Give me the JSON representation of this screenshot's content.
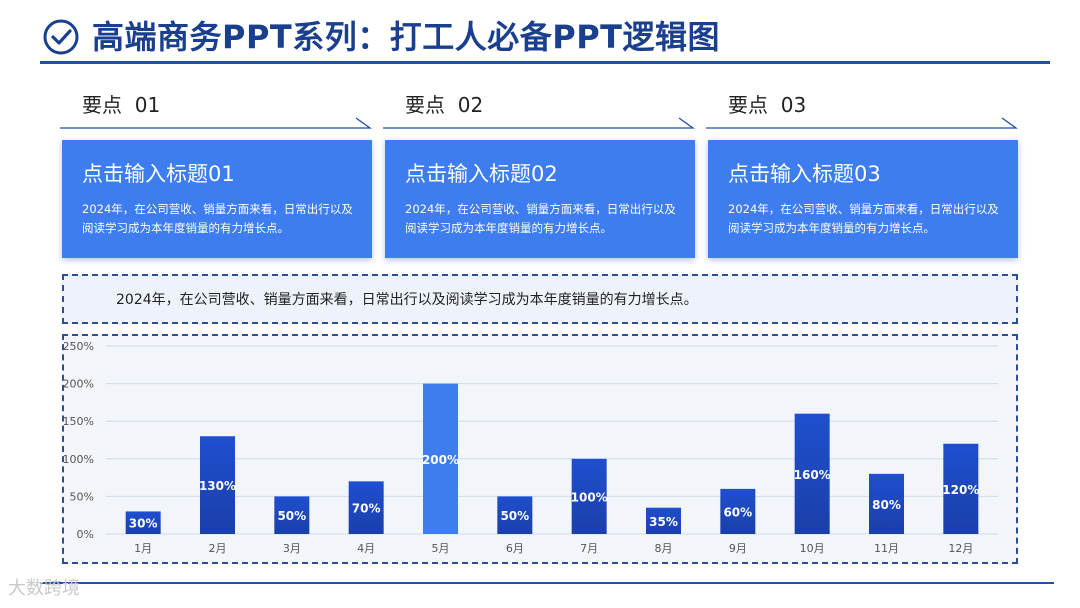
{
  "header": {
    "title": "高端商务PPT系列：打工人必备PPT逻辑图",
    "icon": "check-circle-icon"
  },
  "points": [
    {
      "label": "要点",
      "num": "01",
      "card_title": "点击输入标题01",
      "card_desc": "2024年，在公司营收、销量方面来看，日常出行以及阅读学习成为本年度销量的有力增长点。"
    },
    {
      "label": "要点",
      "num": "02",
      "card_title": "点击输入标题02",
      "card_desc": "2024年，在公司营收、销量方面来看，日常出行以及阅读学习成为本年度销量的有力增长点。"
    },
    {
      "label": "要点",
      "num": "03",
      "card_title": "点击输入标题03",
      "card_desc": "2024年，在公司营收、销量方面来看，日常出行以及阅读学习成为本年度销量的有力增长点。"
    }
  ],
  "summary": "2024年，在公司营收、销量方面来看，日常出行以及阅读学习成为本年度销量的有力增长点。",
  "watermark": "大数跨境",
  "colors": {
    "title": "#1a3f8f",
    "card": "#3d7df0",
    "bar_dark": "#1d44b8",
    "bar_light": "#3d7df0",
    "rule": "#1f4fa8"
  },
  "chart_data": {
    "type": "bar",
    "categories": [
      "1月",
      "2月",
      "3月",
      "4月",
      "5月",
      "6月",
      "7月",
      "8月",
      "9月",
      "10月",
      "11月",
      "12月"
    ],
    "values": [
      30,
      130,
      50,
      70,
      200,
      50,
      100,
      35,
      60,
      160,
      80,
      120
    ],
    "data_labels": [
      "30%",
      "130%",
      "50%",
      "70%",
      "200%",
      "50%",
      "100%",
      "35%",
      "60%",
      "160%",
      "80%",
      "120%"
    ],
    "y_ticks": [
      0,
      50,
      100,
      150,
      200,
      250
    ],
    "y_tick_labels": [
      "0%",
      "50%",
      "100%",
      "150%",
      "200%",
      "250%"
    ],
    "ylim": [
      0,
      250
    ],
    "highlight_index": 4,
    "grid": true,
    "legend": "none"
  }
}
